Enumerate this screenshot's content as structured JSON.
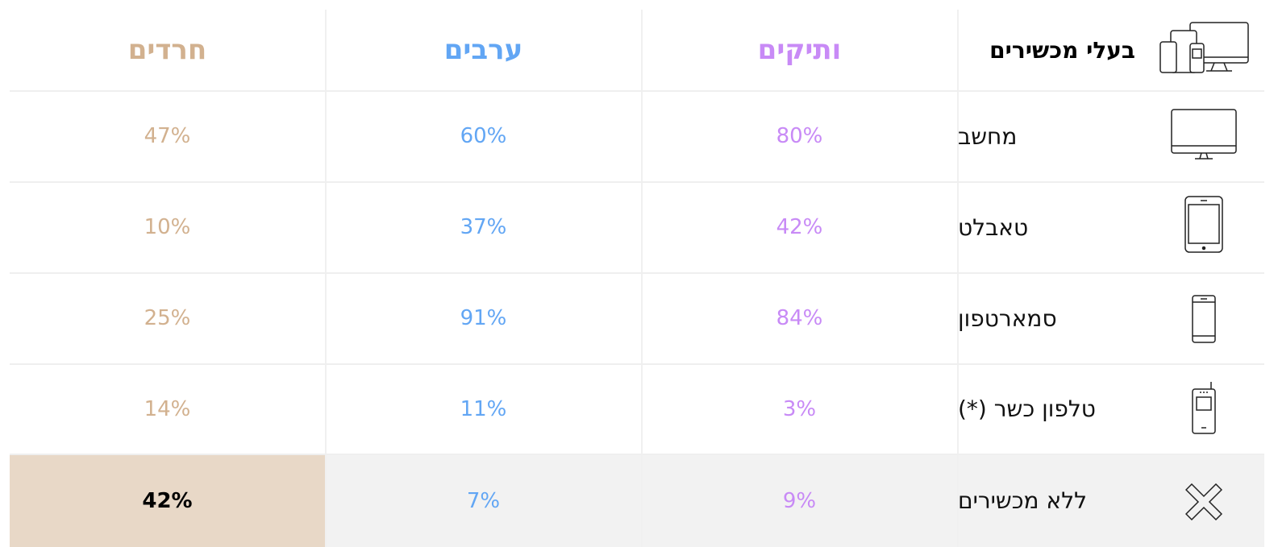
{
  "table": {
    "header": [
      "בעלי מכשירים",
      "ותיקים",
      "ערבים",
      "חרדים"
    ],
    "rows": [
      [
        "מחשב",
        "80%",
        "60%",
        "47%"
      ],
      [
        "טאבלט",
        "42%",
        "37%",
        "10%"
      ],
      [
        "סמארטפון",
        "84%",
        "91%",
        "25%"
      ],
      [
        "טלפון כשר (*)",
        "3%",
        "11%",
        "14%"
      ],
      [
        "ללא מכשירים",
        "9%",
        "7%",
        "42%"
      ]
    ],
    "column_colors": [
      "#000000",
      "#c88af6",
      "#62a6f4",
      "#d2b18f"
    ]
  }
}
